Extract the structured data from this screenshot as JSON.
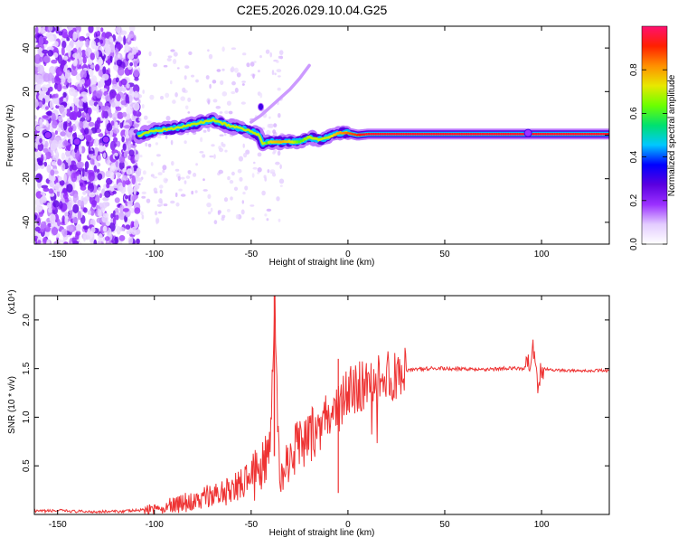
{
  "figure": {
    "title": "C2E5.2026.029.10.04.G25"
  },
  "chart_data": [
    {
      "type": "heatmap",
      "xlabel": "Height of straight line (km)",
      "ylabel": "Frequency (Hz)",
      "xlim": [
        -162,
        135
      ],
      "ylim": [
        -50,
        50
      ],
      "xticks": [
        -150,
        -100,
        -50,
        0,
        50,
        100
      ],
      "yticks": [
        -40,
        -20,
        0,
        20,
        40
      ],
      "grid": false,
      "colorbar": {
        "label": "Normalized spectral amplitude",
        "range": [
          0,
          1
        ],
        "ticks": [
          "0.0",
          "0.2",
          "0.4",
          "0.6",
          "0.8"
        ],
        "colormap": [
          "#ffffff",
          "#e3ccff",
          "#9b30ff",
          "#5a00e0",
          "#0000ff",
          "#00c8ff",
          "#00e070",
          "#6cff00",
          "#e8e800",
          "#ff9000",
          "#ff2000",
          "#ff1070"
        ]
      },
      "ridge": {
        "x": [
          -108,
          -100,
          -90,
          -80,
          -70,
          -60,
          -50,
          -46,
          -44,
          -40,
          -35,
          -30,
          -25,
          -20,
          -15,
          -10,
          -5,
          0,
          5,
          10,
          20,
          40,
          60,
          80,
          95,
          110,
          135
        ],
        "y": [
          0,
          2,
          3,
          5,
          7,
          4,
          2,
          0,
          -4,
          -3,
          -3,
          -3,
          -3,
          -1,
          -2,
          -1,
          1,
          1,
          0,
          0.5,
          0.5,
          0.5,
          0.5,
          0.5,
          0.5,
          0.5,
          0.5
        ],
        "amplitude": [
          0.4,
          0.45,
          0.5,
          0.5,
          0.55,
          0.55,
          0.5,
          0.4,
          0.45,
          0.75,
          0.8,
          0.75,
          0.6,
          0.7,
          0.7,
          0.7,
          0.8,
          0.85,
          0.9,
          0.95,
          0.95,
          0.95,
          0.95,
          0.95,
          0.95,
          0.95,
          0.95
        ]
      },
      "branch": {
        "x": [
          -50,
          -45,
          -40,
          -35,
          -30,
          -25,
          -20
        ],
        "y": [
          6,
          9,
          13,
          17,
          21,
          26,
          32
        ]
      }
    },
    {
      "type": "line",
      "xlabel": "Height of straight line (km)",
      "ylabel": "SNR (10 * v/v)",
      "yscale_label": "(x10⁴)",
      "xlim": [
        -162,
        135
      ],
      "ylim": [
        0,
        2.25
      ],
      "xticks": [
        -150,
        -100,
        -50,
        0,
        50,
        100
      ],
      "yticks": [
        0.5,
        1.0,
        1.5,
        2.0
      ],
      "ytick_labels": [
        "0.5",
        "1.0",
        "1.5",
        "2.0"
      ],
      "grid": false,
      "color": "#ee3333",
      "x": [
        -162,
        -150,
        -140,
        -130,
        -120,
        -110,
        -100,
        -90,
        -80,
        -70,
        -60,
        -55,
        -50,
        -45,
        -40,
        -38,
        -36,
        -34,
        -30,
        -25,
        -20,
        -15,
        -10,
        -8,
        -5,
        -2,
        0,
        5,
        10,
        15,
        20,
        25,
        30,
        40,
        50,
        60,
        70,
        80,
        90,
        94,
        96,
        98,
        100,
        110,
        120,
        135
      ],
      "y": [
        0.03,
        0.04,
        0.03,
        0.03,
        0.03,
        0.04,
        0.06,
        0.1,
        0.14,
        0.2,
        0.25,
        0.32,
        0.4,
        0.5,
        0.6,
        2.25,
        0.7,
        0.4,
        0.6,
        0.7,
        0.8,
        0.9,
        1.0,
        1.0,
        1.1,
        1.2,
        1.25,
        1.3,
        1.35,
        1.4,
        1.42,
        1.45,
        1.48,
        1.5,
        1.5,
        1.5,
        1.49,
        1.5,
        1.5,
        1.55,
        1.72,
        1.3,
        1.5,
        1.48,
        1.48,
        1.48
      ]
    }
  ]
}
